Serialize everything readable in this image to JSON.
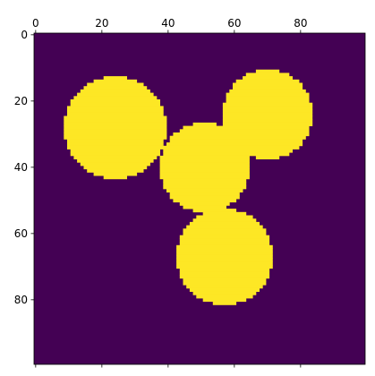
{
  "chart_data": {
    "type": "heatmap",
    "grid_size": [
      100,
      100
    ],
    "x_ticks": [
      0,
      20,
      40,
      60,
      80
    ],
    "y_ticks": [
      0,
      20,
      40,
      60,
      80
    ],
    "x_tick_position": "top",
    "xlim": [
      -0.5,
      99.5
    ],
    "ylim": [
      99.5,
      -0.5
    ],
    "colormap": "viridis",
    "background_value": 0,
    "foreground_value": 1,
    "colors": {
      "background": "#440154",
      "foreground": "#fde725"
    },
    "circles": [
      {
        "cx": 24,
        "cy": 28,
        "r": 15.5
      },
      {
        "cx": 70,
        "cy": 24,
        "r": 13.5
      },
      {
        "cx": 51,
        "cy": 40,
        "r": 13.5
      },
      {
        "cx": 57,
        "cy": 67,
        "r": 14.5
      }
    ]
  }
}
